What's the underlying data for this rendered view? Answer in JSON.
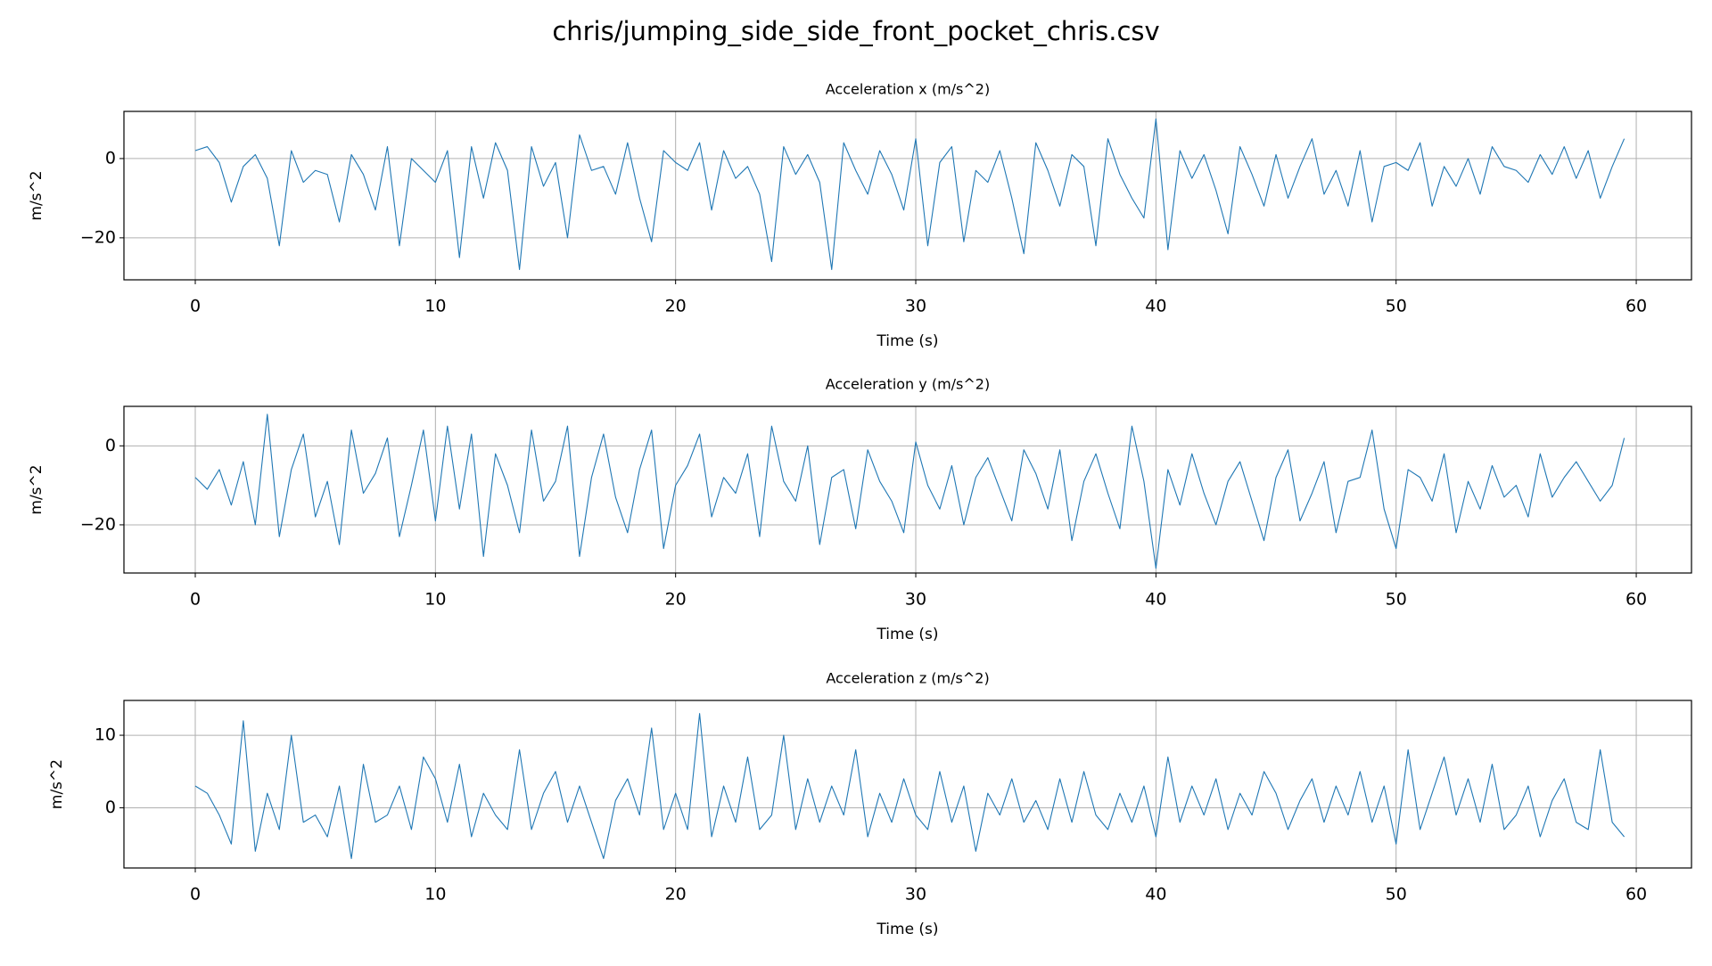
{
  "title": "chris/jumping_side_side_front_pocket_chris.csv",
  "chart_data": [
    {
      "type": "line",
      "title": "Acceleration x (m/s^2)",
      "xlabel": "Time (s)",
      "ylabel": "m/s^2",
      "x": [
        0,
        0.5,
        1,
        1.5,
        2,
        2.5,
        3,
        3.5,
        4,
        4.5,
        5,
        5.5,
        6,
        6.5,
        7,
        7.5,
        8,
        8.5,
        9,
        9.5,
        10,
        10.5,
        11,
        11.5,
        12,
        12.5,
        13,
        13.5,
        14,
        14.5,
        15,
        15.5,
        16,
        16.5,
        17,
        17.5,
        18,
        18.5,
        19,
        19.5,
        20,
        20.5,
        21,
        21.5,
        22,
        22.5,
        23,
        23.5,
        24,
        24.5,
        25,
        25.5,
        26,
        26.5,
        27,
        27.5,
        28,
        28.5,
        29,
        29.5,
        30,
        30.5,
        31,
        31.5,
        32,
        32.5,
        33,
        33.5,
        34,
        34.5,
        35,
        35.5,
        36,
        36.5,
        37,
        37.5,
        38,
        38.5,
        39,
        39.5,
        40,
        40.5,
        41,
        41.5,
        42,
        42.5,
        43,
        43.5,
        44,
        44.5,
        45,
        45.5,
        46,
        46.5,
        47,
        47.5,
        48,
        48.5,
        49,
        49.5,
        50,
        50.5,
        51,
        51.5,
        52,
        52.5,
        53,
        53.5,
        54,
        54.5,
        55,
        55.5,
        56,
        56.5,
        57,
        57.5,
        58,
        58.5,
        59,
        59.5
      ],
      "series": [
        {
          "color": "#1f77b4",
          "values": [
            2,
            3,
            -1,
            -11,
            -2,
            1,
            -5,
            -22,
            2,
            -6,
            -3,
            -4,
            -16,
            1,
            -4,
            -13,
            3,
            -22,
            0,
            -3,
            -6,
            2,
            -25,
            3,
            -10,
            4,
            -3,
            -28,
            3,
            -7,
            -1,
            -20,
            6,
            -3,
            -2,
            -9,
            4,
            -10,
            -21,
            2,
            -1,
            -3,
            4,
            -13,
            2,
            -5,
            -2,
            -9,
            -26,
            3,
            -4,
            1,
            -6,
            -28,
            4,
            -3,
            -9,
            2,
            -4,
            -13,
            5,
            -22,
            -1,
            3,
            -21,
            -3,
            -6,
            2,
            -10,
            -24,
            4,
            -3,
            -12,
            1,
            -2,
            -22,
            5,
            -4,
            -10,
            -15,
            10,
            -23,
            2,
            -5,
            1,
            -8,
            -19,
            3,
            -4,
            -12,
            1,
            -10,
            -2,
            5,
            -9,
            -3,
            -12,
            2,
            -16,
            -2,
            -1,
            -3,
            4,
            -12,
            -2,
            -7,
            0,
            -9,
            3,
            -2,
            -3,
            -6,
            1,
            -4,
            3,
            -5,
            2,
            -10,
            -2,
            5
          ]
        }
      ],
      "xlim": [
        -2.97,
        62.3
      ],
      "ylim": [
        -30.6,
        11.9
      ],
      "xticks": [
        0,
        10,
        20,
        30,
        40,
        50,
        60
      ],
      "yticks": [
        {
          "value": -20,
          "label": "−20"
        },
        0
      ],
      "grid": true
    },
    {
      "type": "line",
      "title": "Acceleration y (m/s^2)",
      "xlabel": "Time (s)",
      "ylabel": "m/s^2",
      "x": [
        0,
        0.5,
        1,
        1.5,
        2,
        2.5,
        3,
        3.5,
        4,
        4.5,
        5,
        5.5,
        6,
        6.5,
        7,
        7.5,
        8,
        8.5,
        9,
        9.5,
        10,
        10.5,
        11,
        11.5,
        12,
        12.5,
        13,
        13.5,
        14,
        14.5,
        15,
        15.5,
        16,
        16.5,
        17,
        17.5,
        18,
        18.5,
        19,
        19.5,
        20,
        20.5,
        21,
        21.5,
        22,
        22.5,
        23,
        23.5,
        24,
        24.5,
        25,
        25.5,
        26,
        26.5,
        27,
        27.5,
        28,
        28.5,
        29,
        29.5,
        30,
        30.5,
        31,
        31.5,
        32,
        32.5,
        33,
        33.5,
        34,
        34.5,
        35,
        35.5,
        36,
        36.5,
        37,
        37.5,
        38,
        38.5,
        39,
        39.5,
        40,
        40.5,
        41,
        41.5,
        42,
        42.5,
        43,
        43.5,
        44,
        44.5,
        45,
        45.5,
        46,
        46.5,
        47,
        47.5,
        48,
        48.5,
        49,
        49.5,
        50,
        50.5,
        51,
        51.5,
        52,
        52.5,
        53,
        53.5,
        54,
        54.5,
        55,
        55.5,
        56,
        56.5,
        57,
        57.5,
        58,
        58.5,
        59,
        59.5
      ],
      "series": [
        {
          "color": "#1f77b4",
          "values": [
            -8,
            -11,
            -6,
            -15,
            -4,
            -20,
            8,
            -23,
            -6,
            3,
            -18,
            -9,
            -25,
            4,
            -12,
            -7,
            2,
            -23,
            -10,
            4,
            -19,
            5,
            -16,
            3,
            -28,
            -2,
            -10,
            -22,
            4,
            -14,
            -9,
            5,
            -28,
            -8,
            3,
            -13,
            -22,
            -6,
            4,
            -26,
            -10,
            -5,
            3,
            -18,
            -8,
            -12,
            -2,
            -23,
            5,
            -9,
            -14,
            0,
            -25,
            -8,
            -6,
            -21,
            -1,
            -9,
            -14,
            -22,
            1,
            -10,
            -16,
            -5,
            -20,
            -8,
            -3,
            -11,
            -19,
            -1,
            -7,
            -16,
            -1,
            -24,
            -9,
            -2,
            -12,
            -21,
            5,
            -9,
            -31,
            -6,
            -15,
            -2,
            -12,
            -20,
            -9,
            -4,
            -14,
            -24,
            -8,
            -1,
            -19,
            -12,
            -4,
            -22,
            -9,
            -8,
            4,
            -16,
            -26,
            -6,
            -8,
            -14,
            -2,
            -22,
            -9,
            -16,
            -5,
            -13,
            -10,
            -18,
            -2,
            -13,
            -8,
            -4,
            -9,
            -14,
            -10,
            2
          ]
        }
      ],
      "xlim": [
        -2.97,
        62.3
      ],
      "ylim": [
        -32.2,
        10
      ],
      "xticks": [
        0,
        10,
        20,
        30,
        40,
        50,
        60
      ],
      "yticks": [
        {
          "value": -20,
          "label": "−20"
        },
        0
      ],
      "grid": true
    },
    {
      "type": "line",
      "title": "Acceleration z (m/s^2)",
      "xlabel": "Time (s)",
      "ylabel": "m/s^2",
      "x": [
        0,
        0.5,
        1,
        1.5,
        2,
        2.5,
        3,
        3.5,
        4,
        4.5,
        5,
        5.5,
        6,
        6.5,
        7,
        7.5,
        8,
        8.5,
        9,
        9.5,
        10,
        10.5,
        11,
        11.5,
        12,
        12.5,
        13,
        13.5,
        14,
        14.5,
        15,
        15.5,
        16,
        16.5,
        17,
        17.5,
        18,
        18.5,
        19,
        19.5,
        20,
        20.5,
        21,
        21.5,
        22,
        22.5,
        23,
        23.5,
        24,
        24.5,
        25,
        25.5,
        26,
        26.5,
        27,
        27.5,
        28,
        28.5,
        29,
        29.5,
        30,
        30.5,
        31,
        31.5,
        32,
        32.5,
        33,
        33.5,
        34,
        34.5,
        35,
        35.5,
        36,
        36.5,
        37,
        37.5,
        38,
        38.5,
        39,
        39.5,
        40,
        40.5,
        41,
        41.5,
        42,
        42.5,
        43,
        43.5,
        44,
        44.5,
        45,
        45.5,
        46,
        46.5,
        47,
        47.5,
        48,
        48.5,
        49,
        49.5,
        50,
        50.5,
        51,
        51.5,
        52,
        52.5,
        53,
        53.5,
        54,
        54.5,
        55,
        55.5,
        56,
        56.5,
        57,
        57.5,
        58,
        58.5,
        59,
        59.5
      ],
      "series": [
        {
          "color": "#1f77b4",
          "values": [
            3,
            2,
            -1,
            -5,
            12,
            -6,
            2,
            -3,
            10,
            -2,
            -1,
            -4,
            3,
            -7,
            6,
            -2,
            -1,
            3,
            -3,
            7,
            4,
            -2,
            6,
            -4,
            2,
            -1,
            -3,
            8,
            -3,
            2,
            5,
            -2,
            3,
            -2,
            -7,
            1,
            4,
            -1,
            11,
            -3,
            2,
            -3,
            13,
            -4,
            3,
            -2,
            7,
            -3,
            -1,
            10,
            -3,
            4,
            -2,
            3,
            -1,
            8,
            -4,
            2,
            -2,
            4,
            -1,
            -3,
            5,
            -2,
            3,
            -6,
            2,
            -1,
            4,
            -2,
            1,
            -3,
            4,
            -2,
            5,
            -1,
            -3,
            2,
            -2,
            3,
            -4,
            7,
            -2,
            3,
            -1,
            4,
            -3,
            2,
            -1,
            5,
            2,
            -3,
            1,
            4,
            -2,
            3,
            -1,
            5,
            -2,
            3,
            -5,
            8,
            -3,
            2,
            7,
            -1,
            4,
            -2,
            6,
            -3,
            -1,
            3,
            -4,
            1,
            4,
            -2,
            -3,
            8,
            -2,
            -4
          ]
        }
      ],
      "xlim": [
        -2.97,
        62.3
      ],
      "ylim": [
        -8.3,
        14.8
      ],
      "xticks": [
        0,
        10,
        20,
        30,
        40,
        50,
        60
      ],
      "yticks": [
        0,
        10
      ],
      "grid": true
    }
  ]
}
